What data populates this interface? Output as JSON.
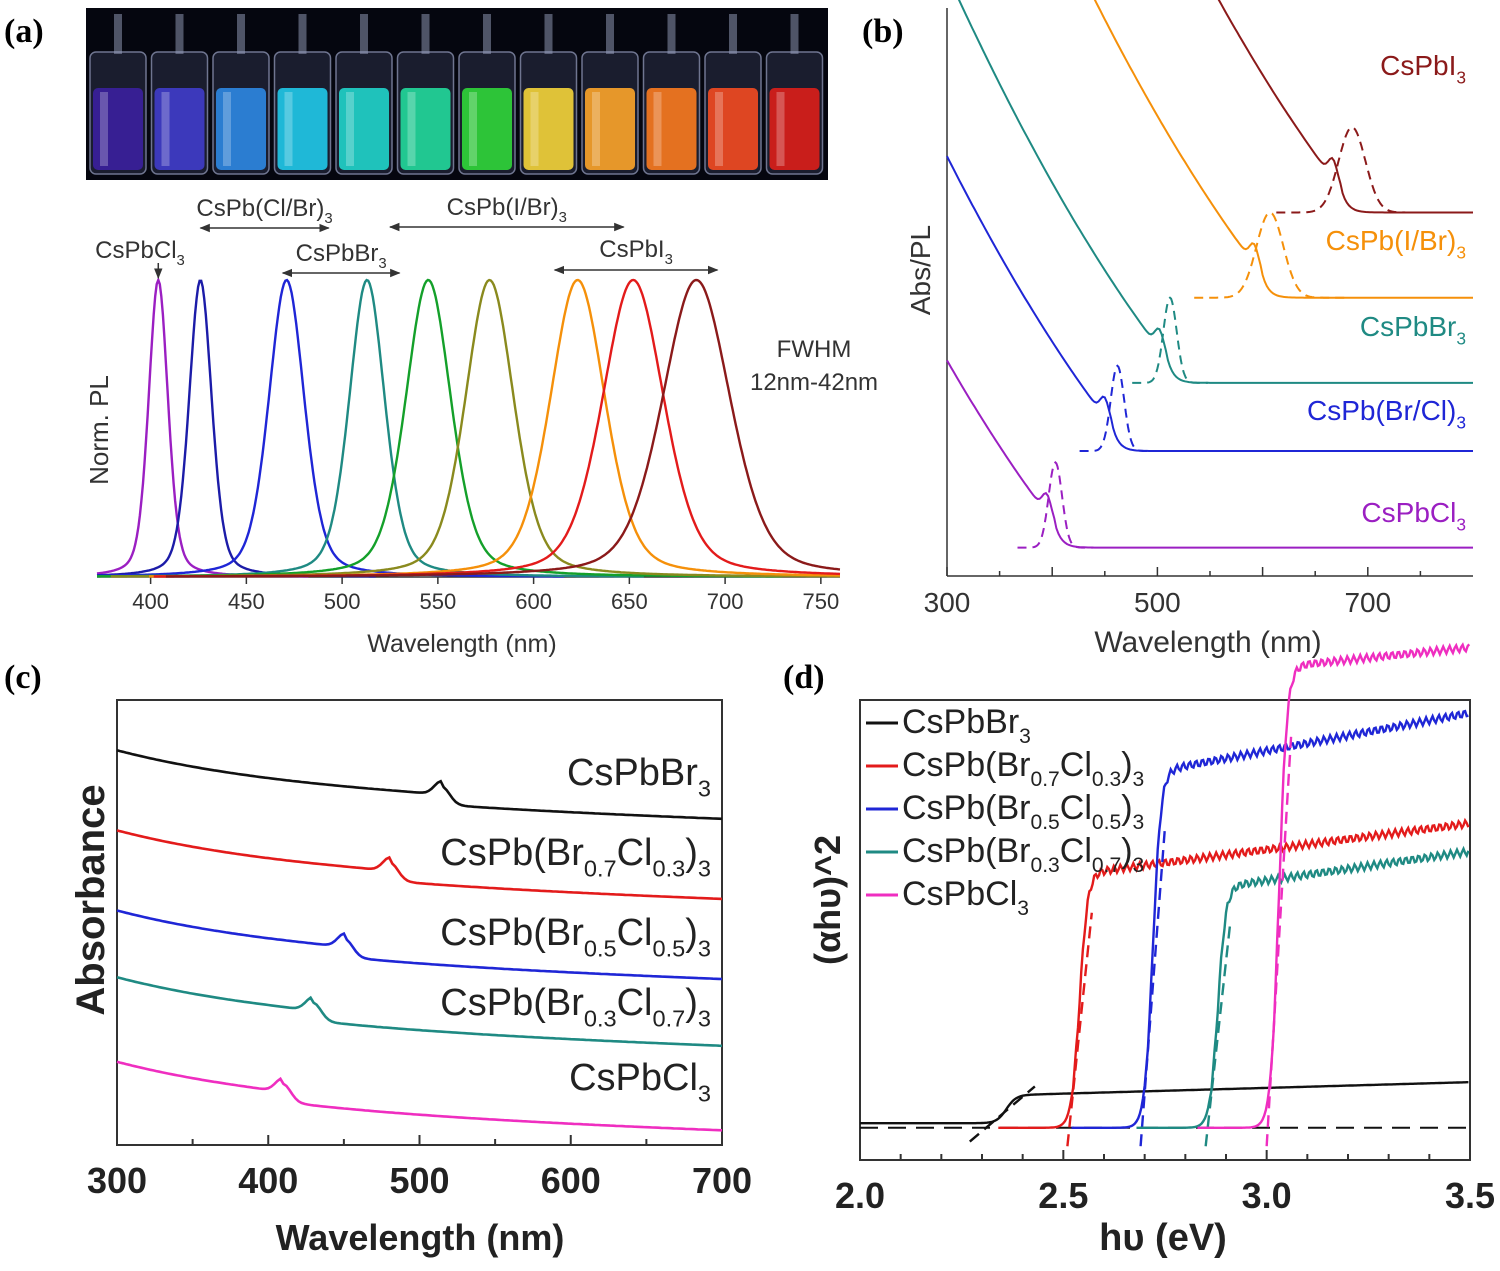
{
  "panels": {
    "a": {
      "letter": "(a)",
      "chart_data": {
        "type": "line",
        "xlabel": "Wavelength (nm)",
        "ylabel": "Norm. PL",
        "xlim": [
          372,
          760
        ],
        "ylim": [
          0,
          1
        ],
        "xticks": [
          400,
          450,
          500,
          550,
          600,
          650,
          700,
          750
        ],
        "annotation": [
          "FWHM",
          "12nm-42nm"
        ],
        "range_labels": [
          {
            "text": "CsPb(Cl/Br)",
            "sub": "3",
            "x0": 426,
            "x1": 493
          },
          {
            "text": "CsPb(I/Br)",
            "sub": "3",
            "x0": 525,
            "x1": 647
          },
          {
            "text": "CsPbBr",
            "sub": "3",
            "x0": 469,
            "x1": 530
          },
          {
            "text": "CsPbI",
            "sub": "3",
            "x0": 611,
            "x1": 696
          },
          {
            "text": "CsPbCl",
            "sub": "3",
            "x0": 404,
            "x1": 404
          }
        ],
        "series": [
          {
            "peak": 404,
            "fwhm": 12,
            "color": "#9b1fc2"
          },
          {
            "peak": 426,
            "fwhm": 14,
            "color": "#1c1ca8"
          },
          {
            "peak": 471,
            "fwhm": 22,
            "color": "#1f26d6"
          },
          {
            "peak": 513,
            "fwhm": 22,
            "color": "#1f8a83"
          },
          {
            "peak": 545,
            "fwhm": 28,
            "color": "#14a02a"
          },
          {
            "peak": 577,
            "fwhm": 30,
            "color": "#8a8a1e"
          },
          {
            "peak": 623,
            "fwhm": 34,
            "color": "#f5900a"
          },
          {
            "peak": 652,
            "fwhm": 38,
            "color": "#e31b1b"
          },
          {
            "peak": 685,
            "fwhm": 42,
            "color": "#8b1a1a"
          }
        ],
        "vial_colors": [
          "#3a1f9c",
          "#3f3cc8",
          "#2d86e0",
          "#1fc6e6",
          "#1fd0c8",
          "#22d69a",
          "#2fd23a",
          "#f0d03a",
          "#f7a22a",
          "#f5781f",
          "#ef4a22",
          "#d81e1a"
        ]
      }
    },
    "b": {
      "letter": "(b)",
      "chart_data": {
        "type": "line",
        "xlabel": "Wavelength (nm)",
        "ylabel": "Abs/PL",
        "xlim": [
          300,
          800
        ],
        "xticks": [
          300,
          500,
          700
        ],
        "series": [
          {
            "name": "CsPbI",
            "sub": "3",
            "color": "#8b1a1a",
            "edge": 675,
            "pl_peak": 685,
            "offset": 0.64
          },
          {
            "name": "CsPb(I/Br)",
            "sub": "3",
            "color": "#f5900a",
            "edge": 600,
            "pl_peak": 607,
            "offset": 0.49
          },
          {
            "name": "CsPbBr",
            "sub": "3",
            "color": "#1f8a83",
            "edge": 510,
            "pl_peak": 512,
            "offset": 0.34
          },
          {
            "name": "CsPb(Br/Cl)",
            "sub": "3",
            "color": "#1f26d6",
            "edge": 458,
            "pl_peak": 462,
            "offset": 0.22
          },
          {
            "name": "CsPbCl",
            "sub": "3",
            "color": "#9b1fc2",
            "edge": 403,
            "pl_peak": 403,
            "offset": 0.05
          }
        ]
      }
    },
    "c": {
      "letter": "(c)",
      "chart_data": {
        "type": "line",
        "xlabel": "Wavelength (nm)",
        "ylabel": "Absorbance",
        "xlim": [
          300,
          700
        ],
        "xticks": [
          300,
          400,
          500,
          600,
          700
        ],
        "series": [
          {
            "name": "CsPbBr",
            "subs": [
              "3"
            ],
            "color": "#111111",
            "edge": 515,
            "offset": 0.78
          },
          {
            "name": "CsPb(Br",
            "parts": [
              "0.7",
              "Cl",
              "0.3",
              ")",
              "3"
            ],
            "color": "#e31b1b",
            "edge": 481,
            "offset": 0.6
          },
          {
            "name": "CsPb(Br",
            "parts": [
              "0.5",
              "Cl",
              "0.5",
              ")",
              "3"
            ],
            "color": "#1f26d6",
            "edge": 451,
            "offset": 0.42
          },
          {
            "name": "CsPb(Br",
            "parts": [
              "0.3",
              "Cl",
              "0.7",
              ")",
              "3"
            ],
            "color": "#1f8a83",
            "edge": 430,
            "offset": 0.27
          },
          {
            "name": "CsPbCl",
            "subs": [
              "3"
            ],
            "color": "#ef2ec0",
            "edge": 410,
            "offset": 0.08
          }
        ]
      }
    },
    "d": {
      "letter": "(d)",
      "chart_data": {
        "type": "line",
        "xlabel": "hυ (eV)",
        "ylabel": "(αhυ)^2",
        "xlim": [
          2.0,
          3.5
        ],
        "xticks": [
          "2.0",
          "2.5",
          "3.0",
          "3.5"
        ],
        "series": [
          {
            "legend": "CsPbBr",
            "parts": [
              "3"
            ],
            "color": "#111111",
            "onset": 2.33,
            "step": 0.06,
            "slope": 0.1
          },
          {
            "legend": "CsPb(Br",
            "parts": [
              "0.7",
              "Cl",
              "0.3",
              ")",
              "3"
            ],
            "color": "#e31b1b",
            "onset": 2.52,
            "step": 0.55,
            "slope": 0.38
          },
          {
            "legend": "CsPb(Br",
            "parts": [
              "0.5",
              "Cl",
              "0.5",
              ")",
              "3"
            ],
            "color": "#1f26d6",
            "onset": 2.7,
            "step": 0.77,
            "slope": 0.55
          },
          {
            "legend": "CsPb(Br",
            "parts": [
              "0.3",
              "Cl",
              "0.7",
              ")",
              "3"
            ],
            "color": "#1f8a83",
            "onset": 2.86,
            "step": 0.52,
            "slope": 0.42
          },
          {
            "legend": "CsPbCl",
            "parts": [
              "3"
            ],
            "color": "#ef2ec0",
            "onset": 3.01,
            "step": 1.0,
            "slope": 0.3
          }
        ]
      }
    }
  }
}
